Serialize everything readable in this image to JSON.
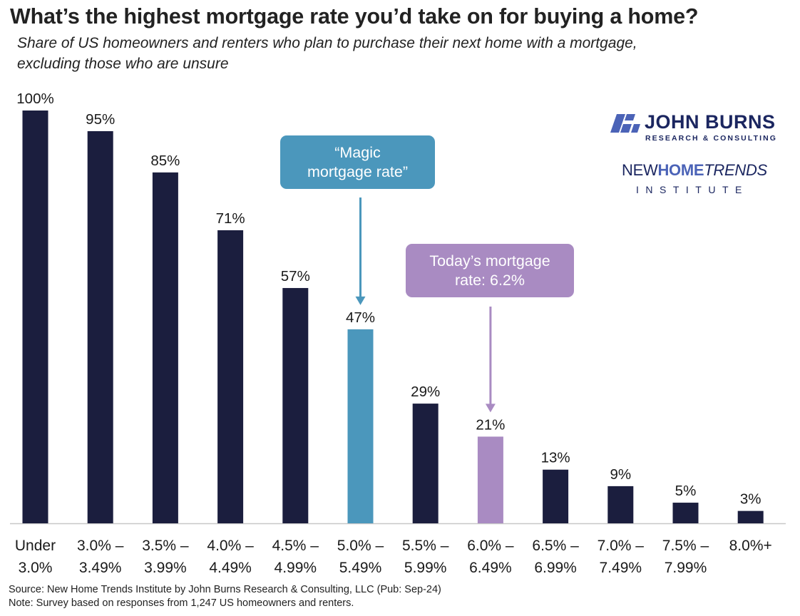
{
  "title": "What’s the highest mortgage rate you’d take on for buying a home?",
  "subtitle_line1": "Share of US homeowners and renters who plan to purchase their next home with a mortgage,",
  "subtitle_line2": "excluding those who are unsure",
  "logos": {
    "john_burns_name": "JOHN BURNS",
    "john_burns_tag": "RESEARCH & CONSULTING",
    "nhti_new": "NEW",
    "nhti_home": "HOME",
    "nhti_trends": "TRENDS",
    "nhti_tag": "INSTITUTE"
  },
  "chart_data": {
    "type": "bar",
    "categories": [
      [
        "Under",
        "3.0%"
      ],
      [
        "3.0% –",
        "3.49%"
      ],
      [
        "3.5% –",
        "3.99%"
      ],
      [
        "4.0% –",
        "4.49%"
      ],
      [
        "4.5% –",
        "4.99%"
      ],
      [
        "5.0% –",
        "5.49%"
      ],
      [
        "5.5% –",
        "5.99%"
      ],
      [
        "6.0% –",
        "6.49%"
      ],
      [
        "6.5% –",
        "6.99%"
      ],
      [
        "7.0% –",
        "7.49%"
      ],
      [
        "7.5% –",
        "7.99%"
      ],
      [
        "8.0%+",
        ""
      ]
    ],
    "values": [
      100,
      95,
      85,
      71,
      57,
      47,
      29,
      21,
      13,
      9,
      5,
      3
    ],
    "value_labels": [
      "100%",
      "95%",
      "85%",
      "71%",
      "57%",
      "47%",
      "29%",
      "21%",
      "13%",
      "9%",
      "5%",
      "3%"
    ],
    "ylim": [
      0,
      100
    ],
    "grid": false,
    "colors": {
      "default": "#1b1e3e",
      "magic": "#4b97bc",
      "today": "#a98bc2",
      "axis": "#c8c8c8"
    },
    "highlight": {
      "magic": 5,
      "today": 7
    },
    "annotations": [
      {
        "name": "magic",
        "target": 5,
        "lines": [
          "“Magic",
          "mortgage rate”"
        ],
        "color": "#4b97bc"
      },
      {
        "name": "today",
        "target": 7,
        "lines": [
          "Today’s mortgage",
          "rate: 6.2%"
        ],
        "color": "#a98bc2"
      }
    ]
  },
  "footer": {
    "source": "Source: New Home Trends Institute by John Burns Research & Consulting, LLC (Pub: Sep-24)",
    "note": "Note: Survey based on responses from 1,247 US homeowners and renters."
  }
}
